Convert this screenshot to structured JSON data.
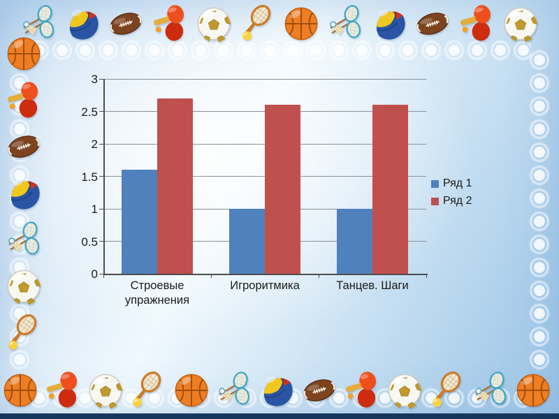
{
  "slide": {
    "type": "presentation-slide",
    "background_base": "#aecfea",
    "background_highlight": "#f4fafe",
    "bottom_edge_color": "#16365c",
    "lace_color": "#ffffff"
  },
  "border_icons": {
    "top": [
      "badminton-rackets",
      "volleyball",
      "american-football",
      "table-tennis-paddles",
      "soccer-ball",
      "tennis-racket",
      "basketball",
      "badminton-rackets",
      "volleyball",
      "american-football",
      "table-tennis-paddles",
      "soccer-ball"
    ],
    "left": [
      "basketball",
      "table-tennis-paddles",
      "american-football",
      "volleyball",
      "badminton-rackets",
      "soccer-ball",
      "tennis-racket"
    ],
    "bottom": [
      "basketball",
      "table-tennis-paddles",
      "soccer-ball",
      "tennis-racket",
      "basketball",
      "badminton-rackets",
      "volleyball",
      "american-football",
      "table-tennis-paddles",
      "soccer-ball",
      "tennis-racket",
      "badminton-rackets",
      "basketball"
    ],
    "right": []
  },
  "chart_data": {
    "type": "bar",
    "title": "",
    "categories": [
      "Строевые упражнения",
      "Игроритмика",
      "Танцев. Шаги"
    ],
    "series": [
      {
        "name": "Ряд 1",
        "color": "#4f81bd",
        "values": [
          1.6,
          1,
          1
        ]
      },
      {
        "name": "Ряд 2",
        "color": "#c0504d",
        "values": [
          2.7,
          2.6,
          2.6
        ]
      }
    ],
    "ylim": [
      0,
      3
    ],
    "ytick_step": 0.5,
    "yticks": [
      "0",
      "0.5",
      "1",
      "1.5",
      "2",
      "2.5",
      "3"
    ],
    "xlabel": "",
    "ylabel": "",
    "grid": true,
    "legend_position": "right",
    "text_color": "#1a1a1a",
    "gridline_color": "#8a9098",
    "axis_color": "#4d4d4d"
  }
}
